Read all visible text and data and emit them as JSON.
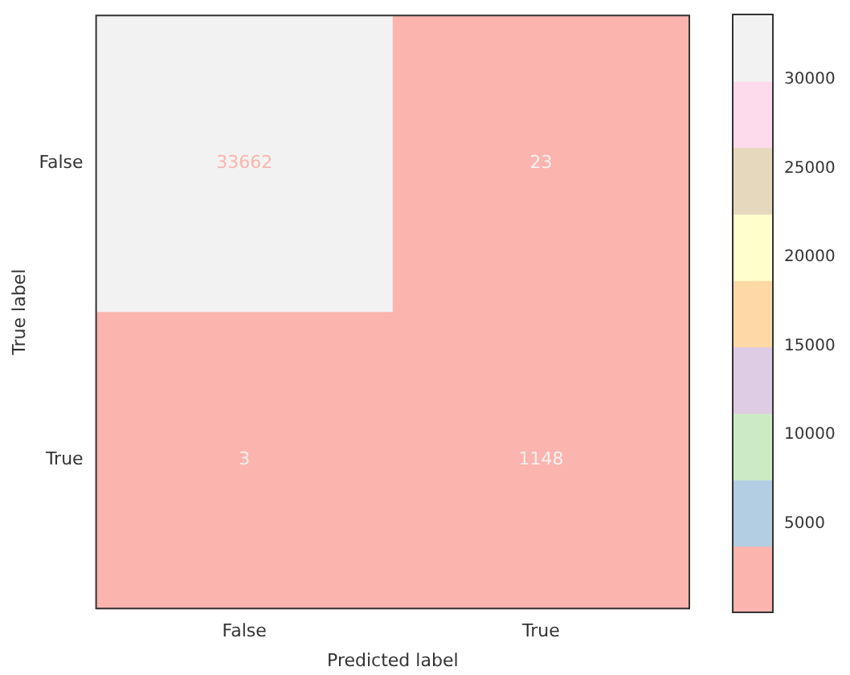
{
  "chart_data": {
    "type": "heatmap",
    "xlabel": "Predicted label",
    "ylabel": "True label",
    "categories": [
      "False",
      "True"
    ],
    "y_categories": [
      "False",
      "True"
    ],
    "cells": [
      [
        33662,
        23
      ],
      [
        3,
        1148
      ]
    ],
    "data_labels": true,
    "colors": [
      "#fbb4ae",
      "#b3cde3",
      "#ccebc5",
      "#decbe4",
      "#fed9a6",
      "#ffffcc",
      "#e5d8bd",
      "#fddaec",
      "#f2f2f2"
    ],
    "clim": [
      3,
      33662
    ],
    "cticks": [
      5000,
      10000,
      15000,
      20000,
      25000,
      30000
    ]
  }
}
